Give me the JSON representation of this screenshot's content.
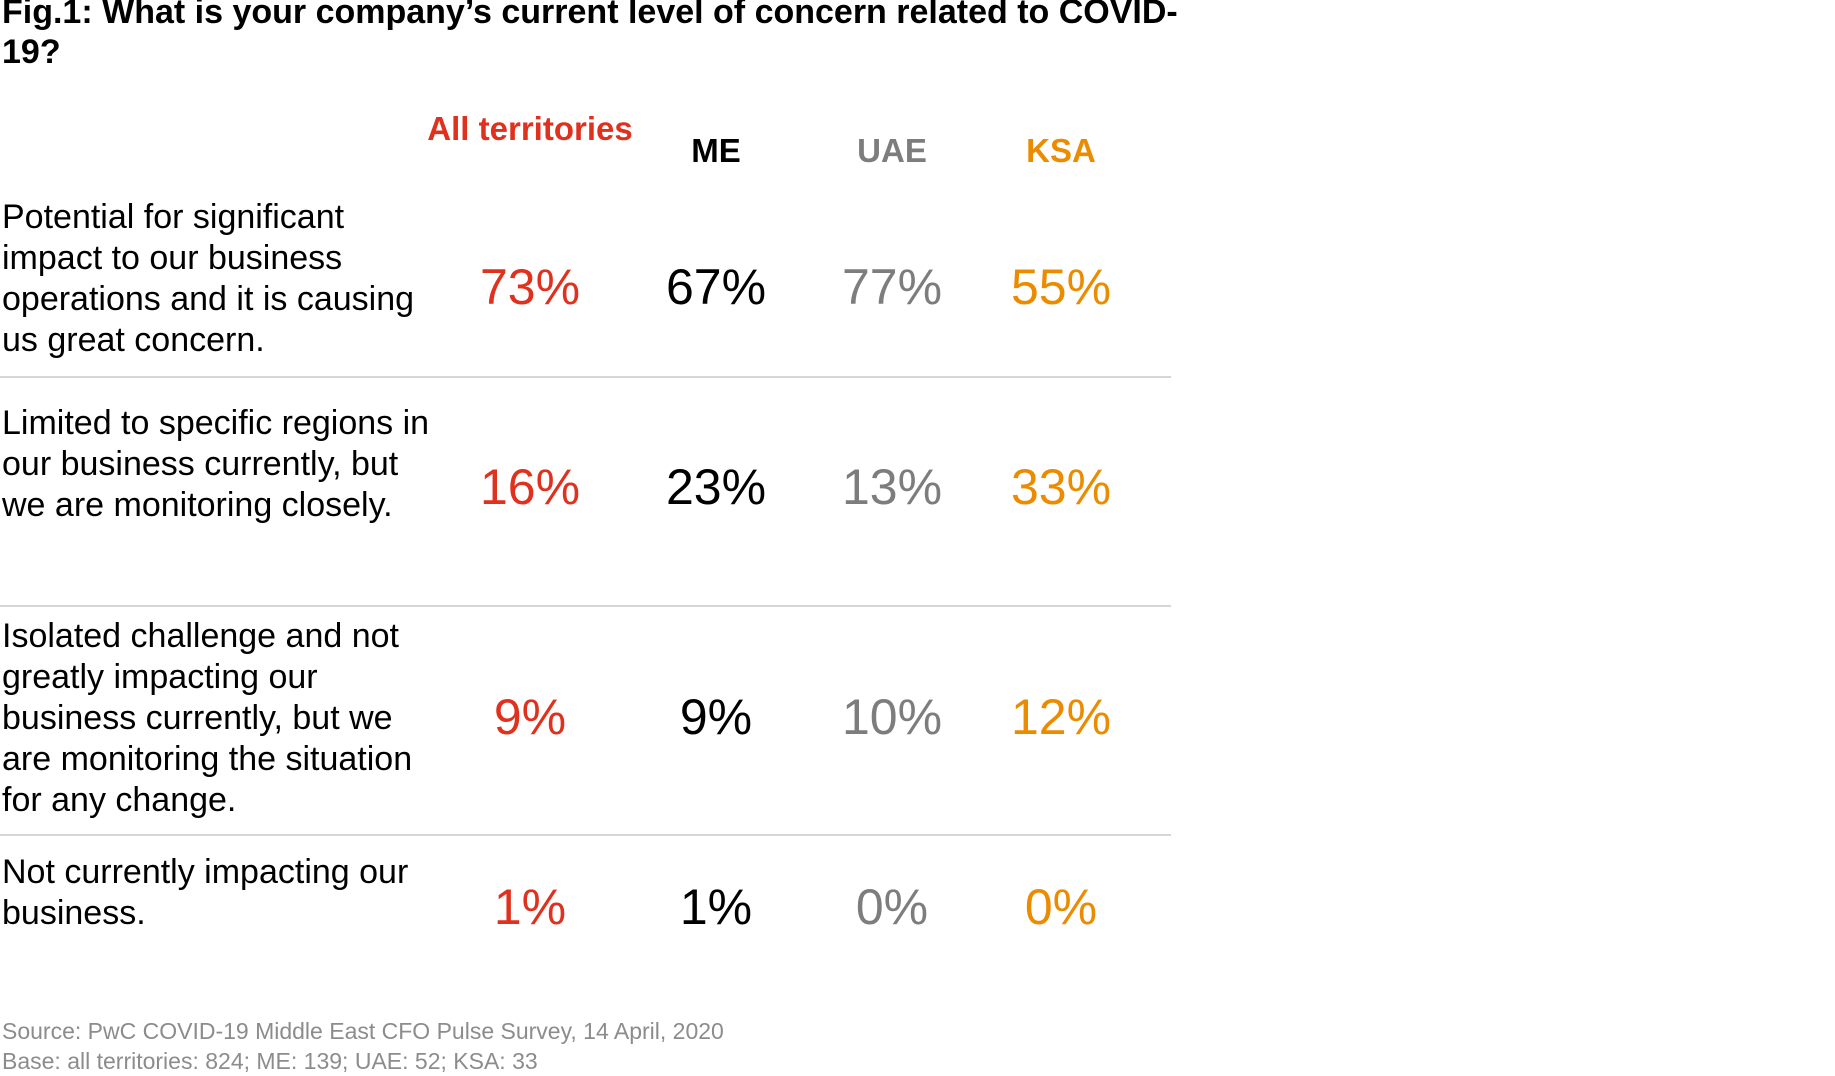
{
  "title": "Fig.1: What is your company’s current level of concern related to COVID-19?",
  "chart_data": {
    "type": "table",
    "title": "Fig.1: What is your company’s current level of concern related to COVID-19?",
    "columns": [
      {
        "label": "All territories",
        "color": "#e0301e"
      },
      {
        "label": "ME",
        "color": "#000000"
      },
      {
        "label": "UAE",
        "color": "#7d7d7d"
      },
      {
        "label": "KSA",
        "color": "#eb8c00"
      }
    ],
    "rows": [
      {
        "label": "Potential for significant impact to our business operations and it is causing us great concern.",
        "values": [
          "73%",
          "67%",
          "77%",
          "55%"
        ]
      },
      {
        "label": "Limited to specific regions in our business currently, but we are monitoring closely.",
        "values": [
          "16%",
          "23%",
          "13%",
          "33%"
        ]
      },
      {
        "label": "Isolated challenge and not greatly impacting our business currently, but we are monitoring the situation for any change.",
        "values": [
          "9%",
          "9%",
          "10%",
          "12%"
        ]
      },
      {
        "label": "Not currently impacting our business.",
        "values": [
          "1%",
          "1%",
          "0%",
          "0%"
        ]
      }
    ]
  },
  "footnotes": {
    "source": "Source: PwC COVID-19 Middle East CFO Pulse Survey, 14 April, 2020",
    "base": "Base: all territories: 824; ME: 139; UAE: 52; KSA: 33"
  }
}
